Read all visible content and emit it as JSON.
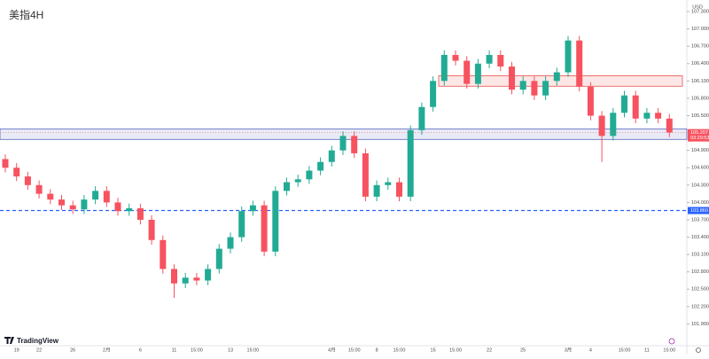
{
  "chart_data": {
    "type": "candlestick",
    "title": "美指4H",
    "currency": "USD",
    "brand": "TradingView",
    "categories": [
      null,
      "19",
      null,
      "22",
      null,
      null,
      "26",
      null,
      null,
      "2月",
      null,
      null,
      "6",
      null,
      null,
      "11",
      null,
      "15:00",
      null,
      null,
      "13",
      null,
      "15:00",
      null,
      null,
      null,
      null,
      null,
      null,
      "4月",
      null,
      "15:00",
      null,
      "8",
      null,
      "15:00",
      null,
      null,
      "15",
      null,
      "15:00",
      null,
      null,
      "22",
      null,
      null,
      "25",
      null,
      null,
      null,
      "3月",
      null,
      "4",
      null,
      null,
      "15:00",
      null,
      "11",
      null,
      "15:00"
    ],
    "open": [
      104.75,
      104.6,
      104.45,
      104.3,
      104.15,
      104.05,
      103.95,
      103.88,
      104.05,
      104.2,
      104.0,
      103.85,
      103.9,
      103.7,
      103.35,
      102.85,
      102.6,
      102.7,
      102.65,
      102.85,
      103.2,
      103.4,
      103.85,
      103.95,
      103.15,
      104.2,
      104.35,
      104.4,
      104.55,
      104.7,
      104.9,
      105.15,
      104.85,
      104.1,
      104.3,
      104.35,
      104.1,
      105.25,
      105.65,
      106.1,
      106.55,
      106.45,
      106.05,
      106.4,
      106.55,
      106.35,
      105.95,
      106.1,
      105.85,
      106.1,
      106.25,
      106.8,
      106.0,
      105.5,
      105.15,
      105.55,
      105.85,
      105.45,
      105.55,
      105.45
    ],
    "high": [
      104.83,
      104.68,
      104.53,
      104.38,
      104.23,
      104.13,
      104.03,
      104.13,
      104.28,
      104.28,
      104.08,
      103.98,
      103.98,
      103.78,
      103.43,
      102.93,
      102.78,
      102.78,
      102.93,
      103.28,
      103.48,
      103.93,
      104.03,
      104.03,
      104.28,
      104.43,
      104.48,
      104.63,
      104.78,
      104.98,
      105.23,
      105.23,
      104.93,
      104.38,
      104.43,
      104.43,
      105.33,
      105.73,
      106.18,
      106.63,
      106.63,
      106.53,
      106.48,
      106.63,
      106.63,
      106.43,
      106.18,
      106.18,
      106.18,
      106.33,
      106.88,
      106.88,
      106.08,
      105.58,
      105.63,
      105.93,
      105.93,
      105.63,
      105.63,
      105.53
    ],
    "low": [
      104.52,
      104.37,
      104.22,
      104.07,
      103.97,
      103.87,
      103.8,
      103.8,
      103.97,
      103.92,
      103.77,
      103.77,
      103.62,
      103.27,
      102.77,
      102.35,
      102.52,
      102.57,
      102.57,
      102.77,
      103.12,
      103.32,
      103.77,
      103.07,
      103.07,
      104.12,
      104.27,
      104.32,
      104.47,
      104.62,
      104.82,
      104.77,
      104.02,
      104.02,
      104.22,
      104.02,
      104.02,
      105.17,
      105.57,
      106.02,
      106.37,
      105.97,
      105.97,
      106.32,
      106.27,
      105.87,
      105.87,
      105.77,
      105.77,
      106.02,
      106.17,
      105.92,
      105.42,
      104.7,
      105.07,
      105.47,
      105.37,
      105.37,
      105.37,
      105.13
    ],
    "close": [
      104.6,
      104.45,
      104.3,
      104.15,
      104.05,
      103.95,
      103.88,
      104.05,
      104.2,
      104.0,
      103.85,
      103.9,
      103.7,
      103.35,
      102.85,
      102.6,
      102.7,
      102.65,
      102.85,
      103.2,
      103.4,
      103.85,
      103.95,
      103.15,
      104.2,
      104.35,
      104.4,
      104.55,
      104.7,
      104.9,
      105.15,
      104.85,
      104.1,
      104.3,
      104.35,
      104.1,
      105.25,
      105.65,
      106.1,
      106.55,
      106.45,
      106.05,
      106.4,
      106.55,
      106.35,
      105.95,
      106.1,
      105.85,
      106.1,
      106.25,
      106.8,
      106.0,
      105.5,
      105.15,
      105.55,
      105.85,
      105.45,
      105.55,
      105.45,
      105.21
    ],
    "up_color": "#22ab94",
    "down_color": "#f7525f",
    "ylim": [
      101.6,
      107.5
    ],
    "yticks": [
      {
        "value": 101.9,
        "label": "101.900"
      },
      {
        "value": 102.2,
        "label": "102.200"
      },
      {
        "value": 102.5,
        "label": "102.500"
      },
      {
        "value": 102.8,
        "label": "102.800"
      },
      {
        "value": 103.1,
        "label": "103.100"
      },
      {
        "value": 103.4,
        "label": "103.400"
      },
      {
        "value": 103.7,
        "label": "103.700"
      },
      {
        "value": 104.0,
        "label": "104.000"
      },
      {
        "value": 104.3,
        "label": "104.300"
      },
      {
        "value": 104.6,
        "label": "104.600"
      },
      {
        "value": 104.9,
        "label": "104.900"
      },
      {
        "value": 105.5,
        "label": "105.500"
      },
      {
        "value": 105.8,
        "label": "105.800"
      },
      {
        "value": 106.1,
        "label": "106.100"
      },
      {
        "value": 106.4,
        "label": "106.400"
      },
      {
        "value": 106.7,
        "label": "106.700"
      },
      {
        "value": 107.0,
        "label": "107.000"
      },
      {
        "value": 107.3,
        "label": "107.300"
      }
    ],
    "zones": [
      {
        "from": 105.09,
        "to": 105.27,
        "color": "#3f51b5"
      },
      {
        "from": 106.01,
        "to": 106.19,
        "color": "#e53935"
      }
    ],
    "hline": {
      "value": 103.86,
      "label": "103.860",
      "color": "#2962ff"
    },
    "last_price": {
      "value": 105.207,
      "label": "105.207",
      "countdown": "03:29:53"
    }
  }
}
